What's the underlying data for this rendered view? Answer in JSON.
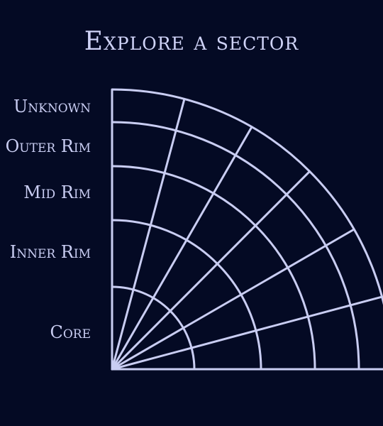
{
  "title": "Explore a sector",
  "rings": [
    {
      "label": "Unknown"
    },
    {
      "label": "Outer Rim"
    },
    {
      "label": "Mid Rim"
    },
    {
      "label": "Inner Rim"
    },
    {
      "label": "Core"
    }
  ],
  "colors": {
    "background": "#040a24",
    "lines": "#c9cdf2",
    "text": "#c9cdf2"
  }
}
